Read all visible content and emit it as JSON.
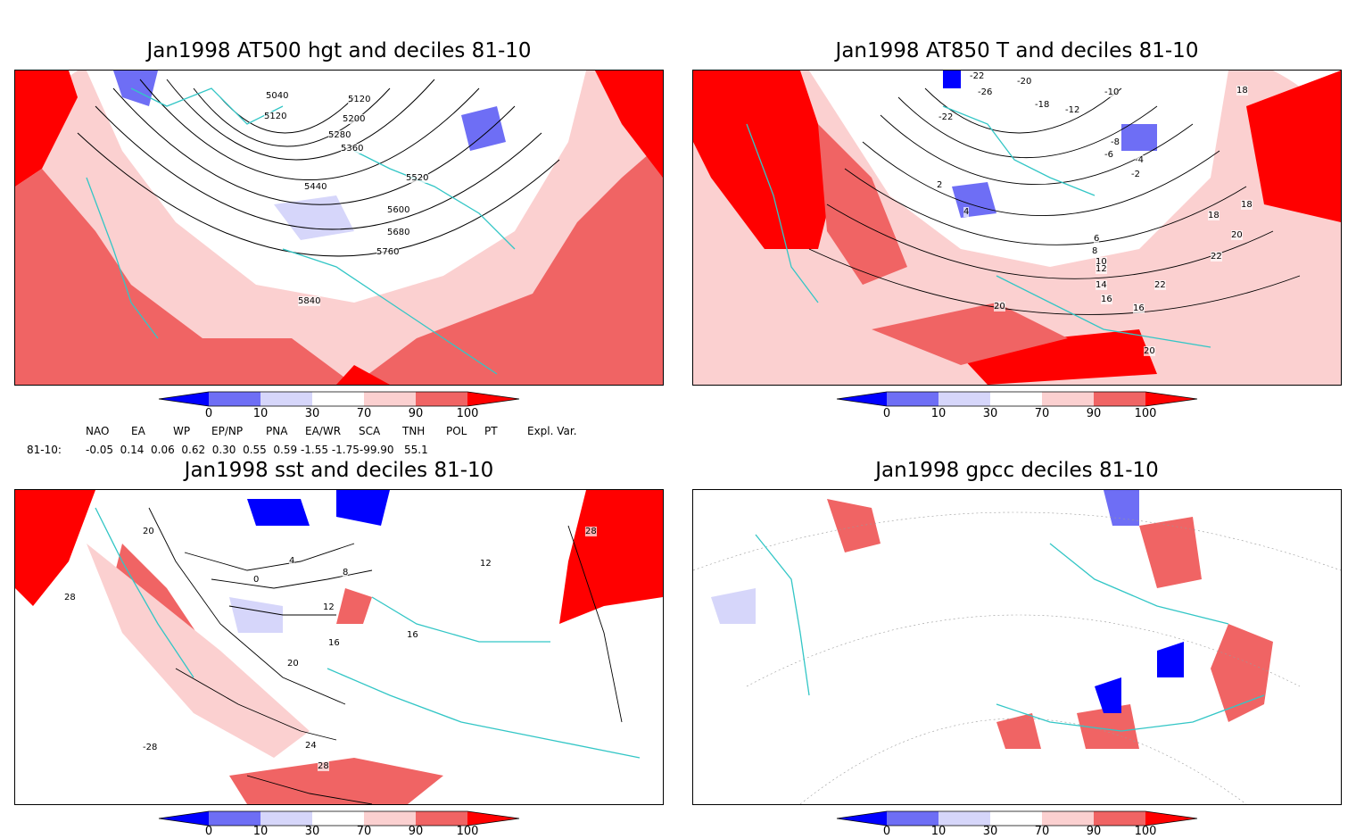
{
  "panels": [
    {
      "title": "Jan1998 AT500 hgt and deciles 81-10",
      "contour_labels": [
        "5040",
        "5120",
        "5120",
        "5200",
        "5280",
        "5360",
        "5440",
        "5520",
        "5600",
        "5680",
        "5760",
        "5840"
      ]
    },
    {
      "title": "Jan1998 AT850 T and deciles 81-10",
      "contour_labels": [
        "-22",
        "-20",
        "-26",
        "-18",
        "-22",
        "-12",
        "-10",
        "-8",
        "-6",
        "-4",
        "-2",
        "2",
        "4",
        "6",
        "8",
        "10",
        "12",
        "14",
        "16",
        "18",
        "20",
        "22",
        "16",
        "18",
        "20",
        "22",
        "20",
        "18"
      ]
    },
    {
      "title": "Jan1998 sst and deciles 81-10",
      "contour_labels": [
        "20",
        "28",
        "0",
        "4",
        "8",
        "12",
        "16",
        "20",
        "24",
        "28",
        "-28",
        "12",
        "16",
        "28"
      ]
    },
    {
      "title": "Jan1998 gpcc deciles 81-10",
      "contour_labels": []
    }
  ],
  "colorbar": {
    "ticks": [
      "0",
      "10",
      "30",
      "70",
      "90",
      "100"
    ],
    "colors": {
      "dark_blue": "#0000ff",
      "mid_blue": "#6e6ef5",
      "light_blue": "#d6d6fa",
      "white": "#ffffff",
      "light_red": "#fbd0d0",
      "mid_red": "#f06464",
      "dark_red": "#ff0000"
    }
  },
  "indices": {
    "headers": [
      "NAO",
      "EA",
      "WP",
      "EP/NP",
      "PNA",
      "EA/WR",
      "SCA",
      "TNH",
      "POL",
      "PT",
      "Expl. Var."
    ],
    "row_label": "81-10:",
    "values": "-0.05  0.14  0.06  0.62  0.30  0.55  0.59 -1.55 -1.75-99.90   55.1"
  },
  "map_colors": {
    "coast": "#33c6c6",
    "contour": "#000000",
    "grid": "#999999"
  }
}
